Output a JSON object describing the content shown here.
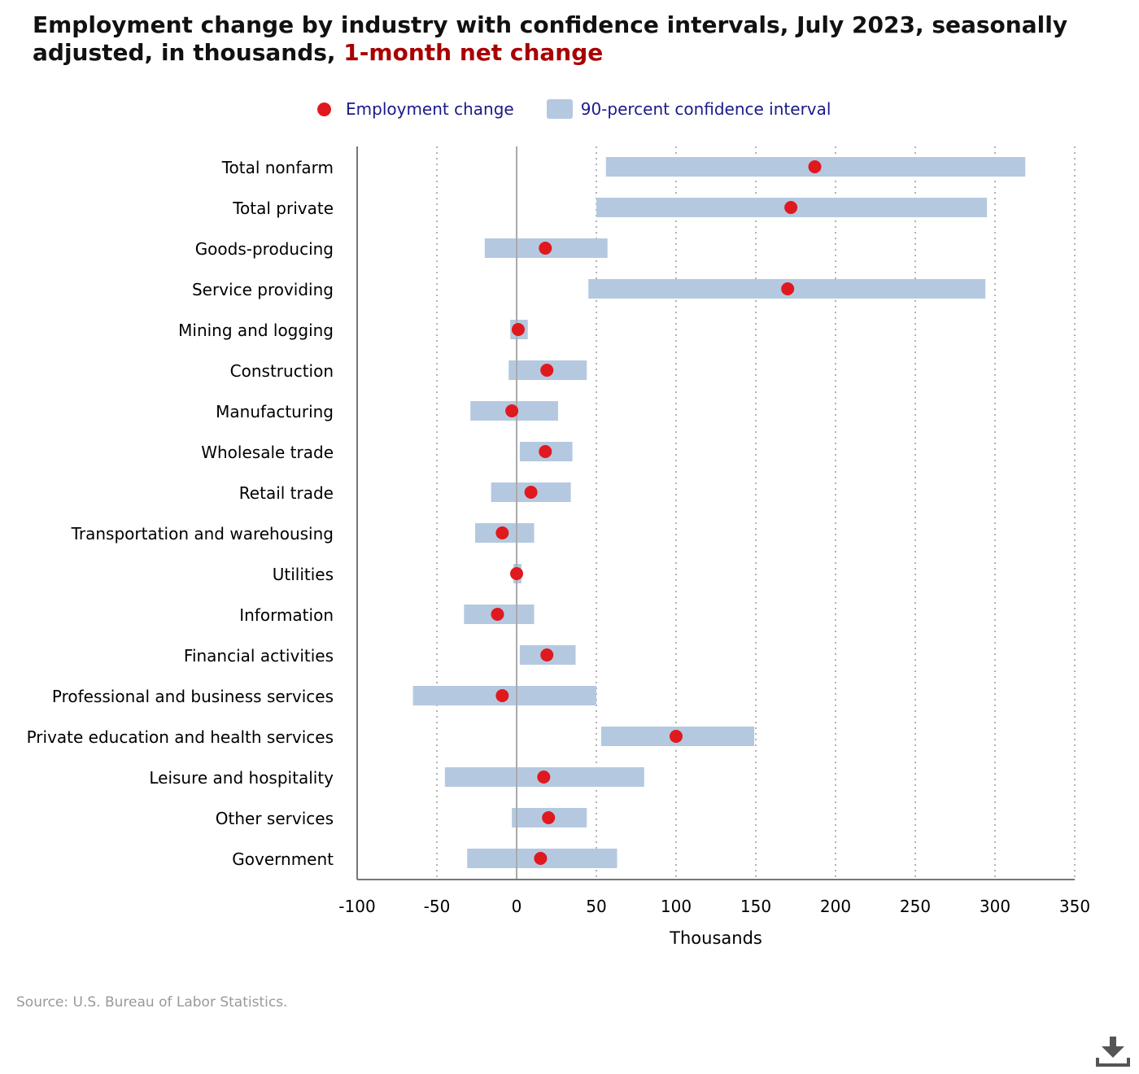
{
  "title": {
    "main": "Employment change by industry with confidence intervals, July 2023, seasonally adjusted, in thousands, ",
    "highlight": "1-month net change"
  },
  "legend": {
    "point_label": "Employment change",
    "interval_label": "90-percent confidence interval"
  },
  "source": "Source: U.S. Bureau of Labor Statistics.",
  "colors": {
    "point": "#e0191f",
    "interval": "#b4c9e0",
    "highlight": "#a80000",
    "legend_text": "#1a1a8a"
  },
  "icons": {
    "download": "download-icon"
  },
  "chart_data": {
    "type": "scatter",
    "title": "Employment change by industry with confidence intervals, July 2023, seasonally adjusted, in thousands, 1-month net change",
    "xlabel": "Thousands",
    "ylabel": "",
    "xlim": [
      -100,
      350
    ],
    "xticks": [
      -100,
      -50,
      0,
      50,
      100,
      150,
      200,
      250,
      300,
      350
    ],
    "grid": "vertical dotted",
    "legend_position": "top",
    "categories": [
      "Total nonfarm",
      "Total private",
      "Goods-producing",
      "Service providing",
      "Mining and logging",
      "Construction",
      "Manufacturing",
      "Wholesale trade",
      "Retail trade",
      "Transportation and warehousing",
      "Utilities",
      "Information",
      "Financial activities",
      "Professional and business services",
      "Private education and health services",
      "Leisure and hospitality",
      "Other services",
      "Government"
    ],
    "series": [
      {
        "name": "Employment change",
        "values": [
          187,
          172,
          18,
          170,
          1,
          19,
          -3,
          18,
          9,
          -9,
          0,
          -12,
          19,
          -9,
          100,
          17,
          20,
          15
        ]
      },
      {
        "name": "90-percent confidence interval",
        "low": [
          56,
          50,
          -20,
          45,
          -4,
          -5,
          -29,
          2,
          -16,
          -26,
          -2,
          -33,
          2,
          -65,
          53,
          -45,
          -3,
          -31
        ],
        "high": [
          319,
          295,
          57,
          294,
          7,
          44,
          26,
          35,
          34,
          11,
          3,
          11,
          37,
          50,
          149,
          80,
          44,
          63
        ]
      }
    ]
  }
}
